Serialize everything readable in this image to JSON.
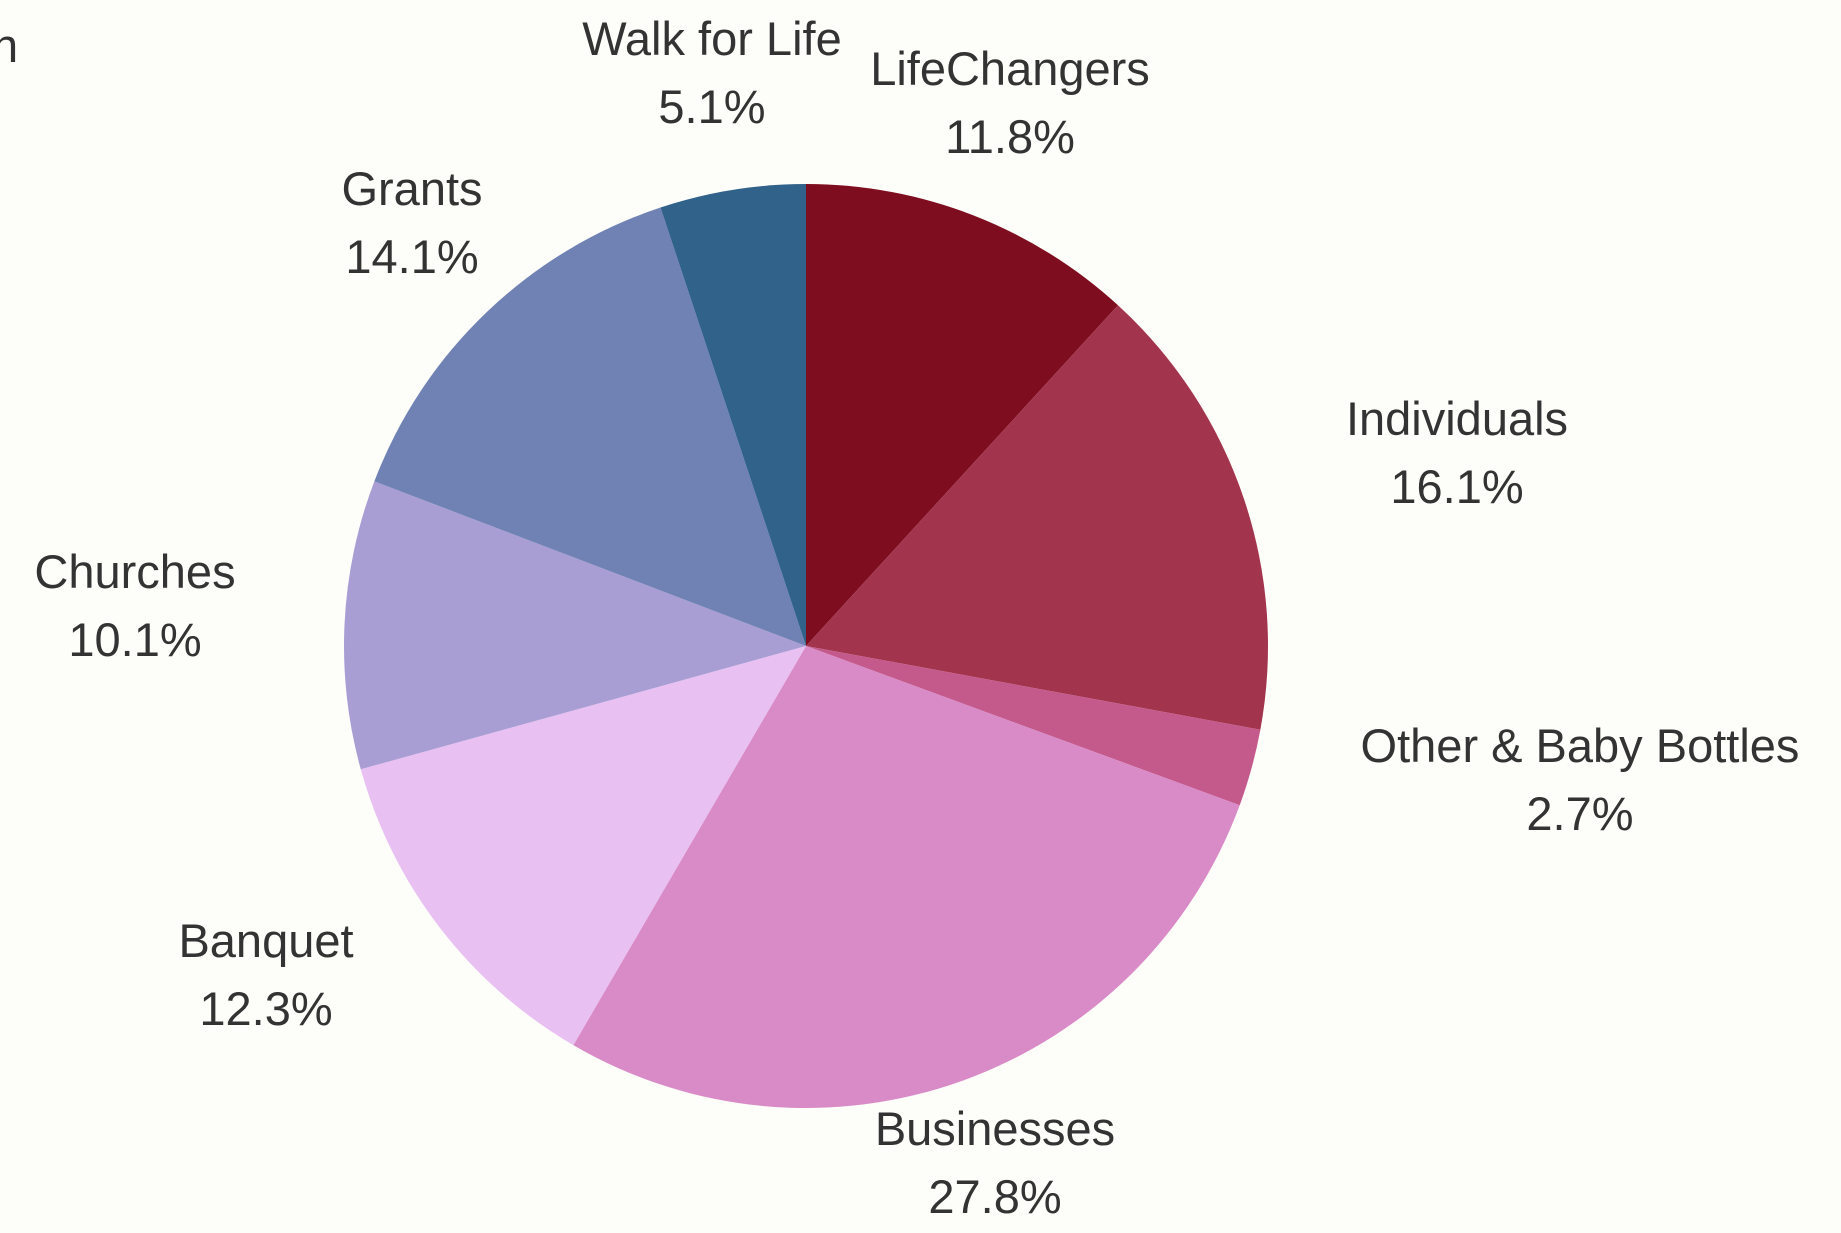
{
  "chart_data": {
    "type": "pie",
    "title": "n",
    "start_angle_deg": 0,
    "direction": "clockwise",
    "slices": [
      {
        "label": "LifeChangers",
        "pct_label": "11.8%",
        "value": 11.8,
        "color": "#7e0d1f"
      },
      {
        "label": "Individuals",
        "pct_label": "16.1%",
        "value": 16.1,
        "color": "#a3344d"
      },
      {
        "label": "Other & Baby Bottles",
        "pct_label": "2.7%",
        "value": 2.7,
        "color": "#c4598c"
      },
      {
        "label": "Businesses",
        "pct_label": "27.8%",
        "value": 27.8,
        "color": "#d98bc8"
      },
      {
        "label": "Banquet",
        "pct_label": "12.3%",
        "value": 12.3,
        "color": "#e8c0f2"
      },
      {
        "label": "Churches",
        "pct_label": "10.1%",
        "value": 10.1,
        "color": "#a99ed4"
      },
      {
        "label": "Grants",
        "pct_label": "14.1%",
        "value": 14.1,
        "color": "#6f82b3"
      },
      {
        "label": "Walk for Life",
        "pct_label": "5.1%",
        "value": 5.1,
        "color": "#31628a"
      }
    ]
  }
}
